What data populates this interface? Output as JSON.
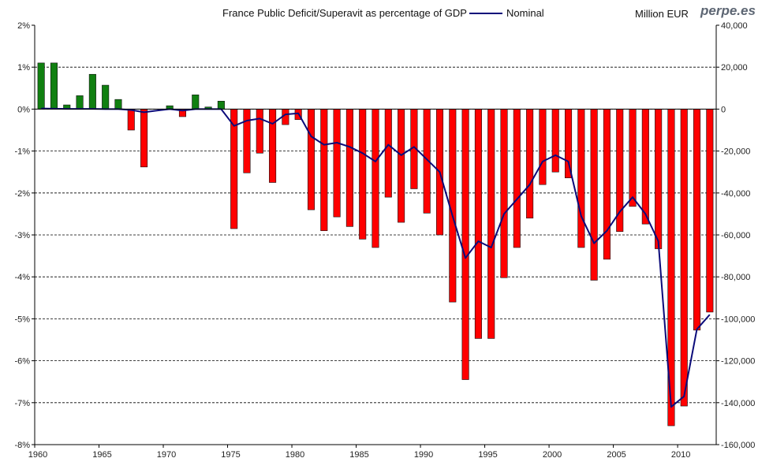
{
  "header": {
    "title": "France Public Deficit/Superavit as percentage of GDP",
    "legend_label": "Nominal",
    "right_axis_unit": "Million EUR",
    "brand": "perpe.es"
  },
  "chart_data": {
    "type": "bar",
    "title": "France Public Deficit/Superavit as percentage of GDP",
    "xlabel": "",
    "ylabel": "",
    "x": [
      1960,
      1961,
      1962,
      1963,
      1964,
      1965,
      1966,
      1967,
      1968,
      1969,
      1970,
      1971,
      1972,
      1973,
      1974,
      1975,
      1976,
      1977,
      1978,
      1979,
      1980,
      1981,
      1982,
      1983,
      1984,
      1985,
      1986,
      1987,
      1988,
      1989,
      1990,
      1991,
      1992,
      1993,
      1994,
      1995,
      1996,
      1997,
      1998,
      1999,
      2000,
      2001,
      2002,
      2003,
      2004,
      2005,
      2006,
      2007,
      2008,
      2009,
      2010,
      2011,
      2012
    ],
    "x_ticks": [
      "1960",
      "1965",
      "1970",
      "1975",
      "1980",
      "1985",
      "1990",
      "1995",
      "2000",
      "2005",
      "2010"
    ],
    "series": [
      {
        "axis": "left",
        "kind": "bar",
        "values": [
          1.1,
          1.1,
          0.1,
          0.32,
          0.83,
          0.57,
          0.23,
          -0.5,
          -1.38,
          0.0,
          0.08,
          -0.18,
          0.34,
          0.05,
          0.19,
          -2.85,
          -1.52,
          -1.05,
          -1.75,
          -0.37,
          -0.25,
          -2.4,
          -2.9,
          -2.57,
          -2.8,
          -3.1,
          -3.3,
          -2.1,
          -2.7,
          -1.9,
          -2.48,
          -3.0,
          -4.6,
          -6.45,
          -5.47,
          -5.47,
          -4.02,
          -3.3,
          -2.6,
          -1.8,
          -1.5,
          -1.64,
          -3.3,
          -4.08,
          -3.58,
          -2.92,
          -2.32,
          -2.74,
          -3.33,
          -7.55,
          -7.08,
          -5.27,
          -4.84
        ]
      },
      {
        "name": "Nominal",
        "axis": "right",
        "kind": "line",
        "values": [
          300,
          200,
          100,
          100,
          100,
          0,
          0,
          -400,
          -1500,
          -700,
          0,
          -700,
          0,
          0,
          0,
          -8000,
          -5500,
          -4500,
          -7000,
          -2500,
          -2000,
          -13000,
          -17000,
          -16000,
          -18000,
          -21000,
          -25000,
          -17000,
          -22000,
          -18000,
          -24000,
          -30000,
          -51000,
          -71000,
          -63000,
          -66000,
          -50000,
          -43000,
          -36000,
          -25000,
          -22000,
          -25000,
          -51000,
          -64000,
          -58000,
          -49000,
          -42000,
          -50000,
          -63000,
          -142000,
          -137000,
          -105000,
          -98000
        ]
      }
    ],
    "y_left": {
      "ticks": [
        "2%",
        "1%",
        "0%",
        "-1%",
        "-2%",
        "-3%",
        "-4%",
        "-5%",
        "-6%",
        "-7%",
        "-8%"
      ],
      "lim": [
        -8,
        2
      ]
    },
    "y_right": {
      "ticks": [
        "40,000",
        "20,000",
        "0",
        "-20,000",
        "-40,000",
        "-60,000",
        "-80,000",
        "-100,000",
        "-120,000",
        "-140,000",
        "-160,000"
      ],
      "lim": [
        -160000,
        40000
      ]
    },
    "grid": true,
    "colors": {
      "positive_bar": "#108010",
      "negative_bar": "#ff0000",
      "bar_edge": "#111111",
      "line": "#0b0b7a",
      "grid": "#000000"
    }
  }
}
